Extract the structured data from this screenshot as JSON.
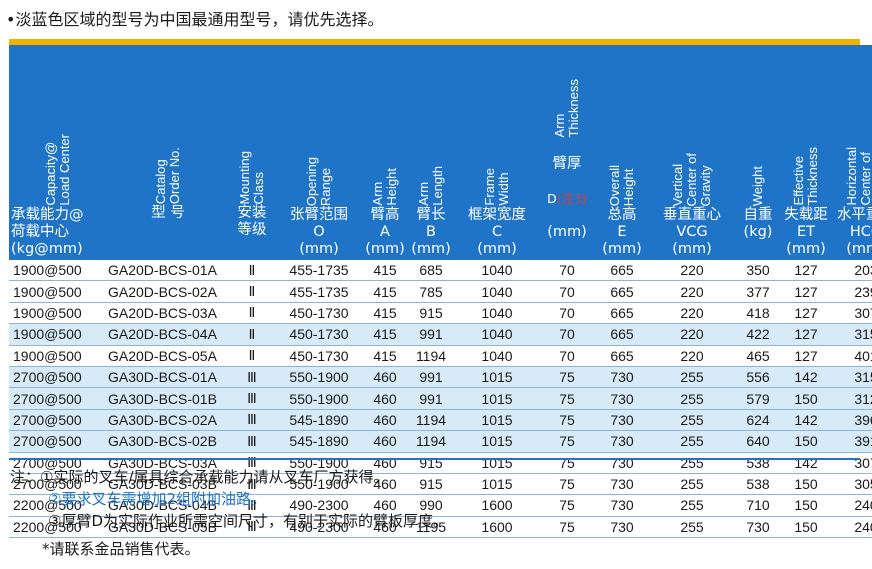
{
  "top_note": "•淡蓝色区域的型号为中国最通用型号，请优先选择。",
  "table": {
    "headers": [
      {
        "en": "Capacity@\nLoad Center",
        "cn": "承载能力@\n荷载中心\n(kg@mm)"
      },
      {
        "en": "Catalog\nOrder No.",
        "cn": "型 号"
      },
      {
        "en": "Mounting\nClass",
        "cn": "安装\n等级"
      },
      {
        "en": "Opening\nRange",
        "cn": "张臂范围\nO\n(mm)"
      },
      {
        "en": "Arm\nHeight",
        "cn": "臂高\nA\n(mm)"
      },
      {
        "en": "Arm\nLength",
        "cn": "臂长\nB\n(mm)"
      },
      {
        "en": "Frame\nWidth",
        "cn": "框架宽度\nC\n(mm)"
      },
      {
        "en": "Arm\nThickness",
        "cn_a": "臂厚",
        "cn_b": "D",
        "cn_c": "(注3)",
        "cn_d": "(mm)"
      },
      {
        "en": "Overall\nHeight",
        "cn": "总高\nE\n(mm)"
      },
      {
        "en": "Vertical\nCenter of\nGravity",
        "cn": "垂直重心\nVCG\n(mm)"
      },
      {
        "en": "Weight",
        "cn": "自重\n(kg)"
      },
      {
        "en": "Effective\nThickness",
        "cn": "失载距\nET\n(mm)"
      },
      {
        "en": "Horizontal\nCenter of\nGravity",
        "cn": "水平重心\nHCG\n(mm)"
      }
    ],
    "rows": [
      {
        "shade": "white",
        "cells": [
          "1900@500",
          "GA20D-BCS-01A",
          "Ⅱ",
          "455-1735",
          "415",
          "685",
          "1040",
          "70",
          "665",
          "220",
          "350",
          "127",
          "203"
        ]
      },
      {
        "shade": "white",
        "cells": [
          "1900@500",
          "GA20D-BCS-02A",
          "Ⅱ",
          "455-1735",
          "415",
          "785",
          "1040",
          "70",
          "665",
          "220",
          "377",
          "127",
          "239"
        ]
      },
      {
        "shade": "white",
        "cells": [
          "1900@500",
          "GA20D-BCS-03A",
          "Ⅱ",
          "450-1730",
          "415",
          "915",
          "1040",
          "70",
          "665",
          "220",
          "418",
          "127",
          "307"
        ]
      },
      {
        "shade": "blue",
        "cells": [
          "1900@500",
          "GA20D-BCS-04A",
          "Ⅱ",
          "450-1730",
          "415",
          "991",
          "1040",
          "70",
          "665",
          "220",
          "422",
          "127",
          "315"
        ]
      },
      {
        "shade": "white",
        "cells": [
          "1900@500",
          "GA20D-BCS-05A",
          "Ⅱ",
          "450-1730",
          "415",
          "1194",
          "1040",
          "70",
          "665",
          "220",
          "465",
          "127",
          "401"
        ]
      },
      {
        "shade": "blue",
        "cells": [
          "2700@500",
          "GA30D-BCS-01A",
          "Ⅲ",
          "550-1900",
          "460",
          "991",
          "1015",
          "75",
          "730",
          "255",
          "556",
          "142",
          "315"
        ]
      },
      {
        "shade": "blue",
        "cells": [
          "2700@500",
          "GA30D-BCS-01B",
          "Ⅲ",
          "550-1900",
          "460",
          "991",
          "1015",
          "75",
          "730",
          "255",
          "579",
          "150",
          "312"
        ]
      },
      {
        "shade": "blue",
        "cells": [
          "2700@500",
          "GA30D-BCS-02A",
          "Ⅲ",
          "545-1890",
          "460",
          "1194",
          "1015",
          "75",
          "730",
          "255",
          "624",
          "142",
          "396"
        ]
      },
      {
        "shade": "blue",
        "cells": [
          "2700@500",
          "GA30D-BCS-02B",
          "Ⅲ",
          "545-1890",
          "460",
          "1194",
          "1015",
          "75",
          "730",
          "255",
          "640",
          "150",
          "391"
        ]
      },
      {
        "shade": "white",
        "cells": [
          "2700@500",
          "GA30D-BCS-03A",
          "Ⅲ",
          "550-1900",
          "460",
          "915",
          "1015",
          "75",
          "730",
          "255",
          "538",
          "142",
          "307"
        ]
      },
      {
        "shade": "white",
        "cells": [
          "2700@500",
          "GA30D-BCS-03B",
          "Ⅲ",
          "550-1900",
          "460",
          "915",
          "1015",
          "75",
          "730",
          "255",
          "538",
          "150",
          "305"
        ]
      },
      {
        "shade": "white",
        "cells": [
          "2200@500",
          "GA30D-BCS-04B",
          "Ⅲ",
          "490-2300",
          "460",
          "990",
          "1600",
          "75",
          "730",
          "255",
          "710",
          "150",
          "240"
        ]
      },
      {
        "shade": "white",
        "cells": [
          "2200@500",
          "GA30D-BCS-05B",
          "Ⅲ",
          "490-2300",
          "460",
          "1195",
          "1600",
          "75",
          "730",
          "255",
          "730",
          "150",
          "240"
        ]
      }
    ]
  },
  "footnotes": {
    "note1": "注：①实际的叉车/属具综合承载能力请从叉车厂方获得。",
    "note2": "②要求叉车需增加2组附加油路。",
    "note3": "③厚臂D为实际作业所需空间尺寸，有别于实际的臂板厚度。",
    "contact": "*请联系金品销售代表。"
  },
  "colors": {
    "header_bg": "#1f74c8",
    "gold_bar": "#f2b300",
    "row_blue": "#d6eaf8",
    "note_blue": "#1f74c8"
  }
}
